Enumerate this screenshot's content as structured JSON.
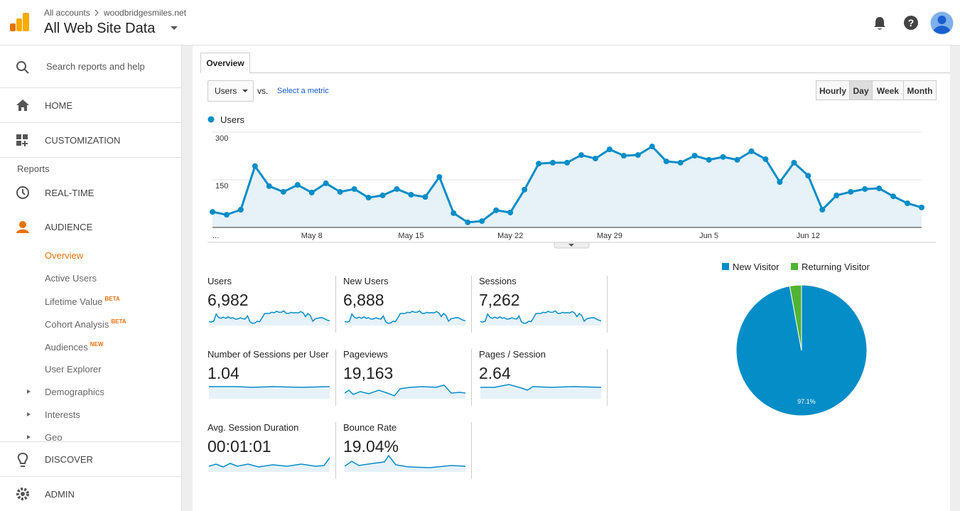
{
  "header": {
    "breadcrumb": [
      "All accounts",
      "woodbridgesmiles.net"
    ],
    "title": "All Web Site Data"
  },
  "sidebar": {
    "search": "Search reports and help",
    "home": "HOME",
    "customization": "CUSTOMIZATION",
    "reports_label": "Reports",
    "realtime": "REAL-TIME",
    "audience": "AUDIENCE",
    "audience_items": [
      {
        "label": "Overview"
      },
      {
        "label": "Active Users"
      },
      {
        "label": "Lifetime Value",
        "badge": "BETA"
      },
      {
        "label": "Cohort Analysis",
        "badge": "BETA"
      },
      {
        "label": "Audiences",
        "badge": "NEW"
      },
      {
        "label": "User Explorer"
      },
      {
        "label": "Demographics"
      },
      {
        "label": "Interests"
      },
      {
        "label": "Geo"
      }
    ],
    "discover": "DISCOVER",
    "admin": "ADMIN"
  },
  "tab": "Overview",
  "controls": {
    "metric": "Users",
    "vs": "vs.",
    "select_metric": "Select a metric",
    "granularity": [
      "Hourly",
      "Day",
      "Week",
      "Month"
    ]
  },
  "chart_data": [
    {
      "type": "line",
      "categories": [
        "...",
        null,
        null,
        null,
        null,
        null,
        null,
        "May 8",
        null,
        null,
        null,
        null,
        null,
        null,
        "May 15",
        null,
        null,
        null,
        null,
        null,
        null,
        "May 22",
        null,
        null,
        null,
        null,
        null,
        null,
        "May 29",
        null,
        null,
        null,
        null,
        null,
        null,
        "Jun 5",
        null,
        null,
        null,
        null,
        null,
        null,
        "Jun 12",
        null,
        null,
        null,
        null,
        null,
        null,
        null,
        null
      ],
      "series": [
        {
          "name": "Users",
          "color": "#058dc7",
          "values": [
            49,
            40,
            56,
            193,
            130,
            112,
            134,
            110,
            139,
            112,
            121,
            94,
            101,
            121,
            103,
            96,
            159,
            45,
            16,
            20,
            54,
            47,
            119,
            201,
            204,
            204,
            228,
            217,
            246,
            226,
            228,
            255,
            208,
            204,
            226,
            213,
            222,
            213,
            240,
            215,
            143,
            204,
            163,
            56,
            101,
            112,
            121,
            123,
            98,
            76,
            63
          ]
        }
      ],
      "ylim": [
        0,
        300
      ],
      "yticks": [
        150,
        300
      ],
      "grid": true
    },
    {
      "type": "pie",
      "categories": [
        "New Visitor",
        "Returning Visitor"
      ],
      "values": [
        97.1,
        2.9
      ],
      "value_labels": [
        "97.1%",
        null
      ],
      "colors": [
        "#058dc7",
        "#50b432"
      ]
    }
  ],
  "metrics": [
    {
      "label": "Users",
      "value": "6,982"
    },
    {
      "label": "New Users",
      "value": "6,888"
    },
    {
      "label": "Sessions",
      "value": "7,262"
    },
    {
      "label": "Number of Sessions per User",
      "value": "1.04"
    },
    {
      "label": "Pageviews",
      "value": "19,163"
    },
    {
      "label": "Pages / Session",
      "value": "2.64"
    },
    {
      "label": "Avg. Session Duration",
      "value": "00:01:01"
    },
    {
      "label": "Bounce Rate",
      "value": "19.04%"
    }
  ]
}
